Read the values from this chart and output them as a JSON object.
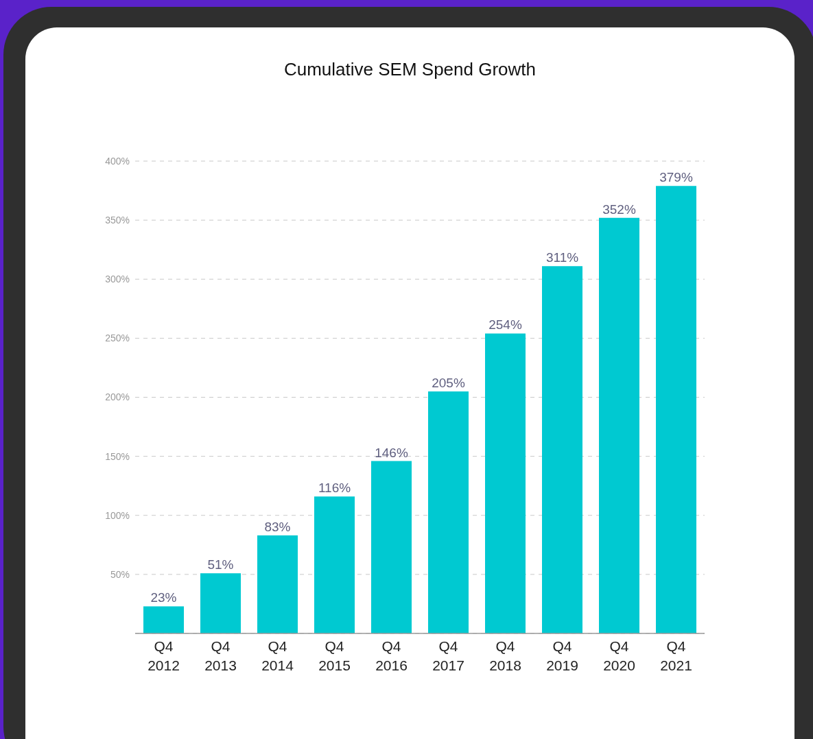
{
  "chart_data": {
    "type": "bar",
    "title": "Cumulative SEM Spend Growth",
    "categories": [
      "Q4 2012",
      "Q4 2013",
      "Q4 2014",
      "Q4 2015",
      "Q4 2016",
      "Q4 2017",
      "Q4 2018",
      "Q4 2019",
      "Q4 2020",
      "Q4 2021"
    ],
    "values": [
      23,
      51,
      83,
      116,
      146,
      205,
      254,
      311,
      352,
      379
    ],
    "value_labels": [
      "23%",
      "51%",
      "83%",
      "116%",
      "146%",
      "205%",
      "254%",
      "311%",
      "352%",
      "379%"
    ],
    "color": "#00c9d1",
    "ylim": [
      0,
      400
    ],
    "yticks": [
      {
        "value": 50,
        "label": "50%"
      },
      {
        "value": 100,
        "label": "100%"
      },
      {
        "value": 150,
        "label": "150%"
      },
      {
        "value": 200,
        "label": "200%"
      },
      {
        "value": 250,
        "label": "250%"
      },
      {
        "value": 300,
        "label": "300%"
      },
      {
        "value": 350,
        "label": "350%"
      },
      {
        "value": 400,
        "label": "400%"
      }
    ],
    "grid": "y"
  }
}
